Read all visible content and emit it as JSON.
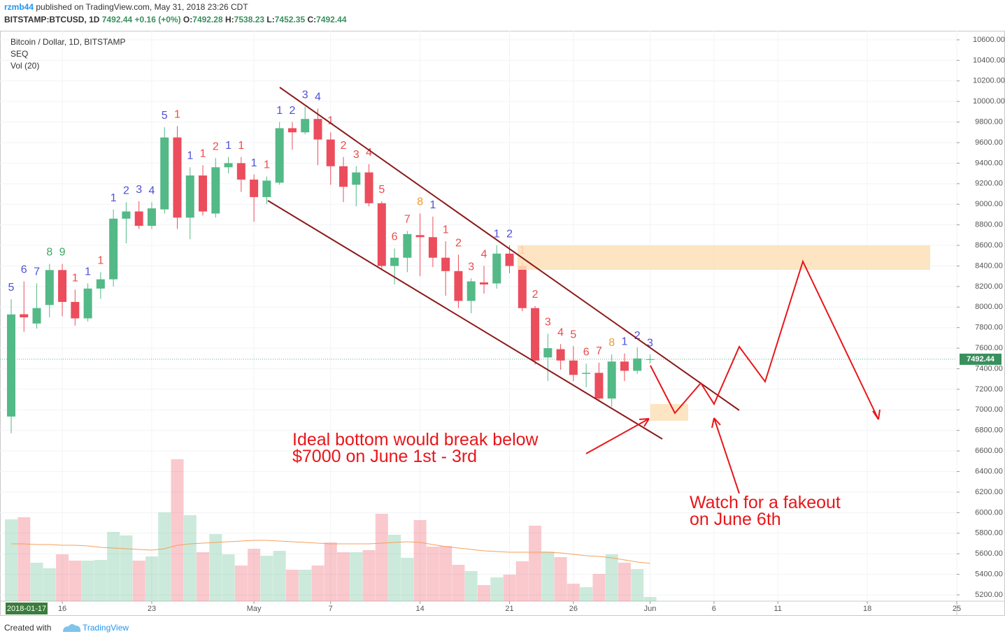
{
  "header": {
    "author": "rzmb44",
    "published": "published on TradingView.com, May 31, 2018 23:26 CDT",
    "symbol": "BITSTAMP:BTCUSD, 1D",
    "last": "7492.44",
    "change": "+0.16 (+0%)",
    "o_label": "O:",
    "o": "7492.28",
    "h_label": "H:",
    "h": "7538.23",
    "l_label": "L:",
    "l": "7452.35",
    "c_label": "C:",
    "c": "7492.44"
  },
  "footer": {
    "created": "Created with",
    "brand": "TradingView"
  },
  "chart_data": {
    "type": "candlestick",
    "title": "Bitcoin / Dollar, 1D, BITSTAMP",
    "indicators": [
      "SEQ",
      "Vol (20)"
    ],
    "cursor_date": "2018-01-17",
    "up_color": "#53b987",
    "down_color": "#eb4d5c",
    "open": [
      6935,
      7930,
      7840,
      8020,
      8360,
      8050,
      7890,
      8180,
      8270,
      8860,
      8930,
      8790,
      8950,
      9650,
      8870,
      9280,
      8910,
      9360,
      9400,
      9240,
      9070,
      9210,
      9740,
      9700,
      9830,
      9630,
      9370,
      9190,
      9310,
      9010,
      8400,
      8480,
      8700,
      8680,
      8480,
      8350,
      8060,
      8240,
      8230,
      8520,
      8400,
      7990,
      7510,
      7590,
      7480,
      7350,
      7360,
      7110,
      7470,
      7380,
      7492.28
    ],
    "high": [
      8077,
      8250,
      8230,
      8420,
      8420,
      8170,
      8230,
      8340,
      8950,
      9020,
      9030,
      9020,
      9750,
      9760,
      9360,
      9380,
      9450,
      9460,
      9460,
      9290,
      9270,
      9800,
      9800,
      9950,
      9930,
      9700,
      9460,
      9370,
      9390,
      9030,
      8570,
      8740,
      8910,
      8880,
      8640,
      8510,
      8280,
      8400,
      8600,
      8600,
      8440,
      8010,
      7740,
      7640,
      7620,
      7450,
      7460,
      7540,
      7550,
      7610,
      7538.23
    ],
    "low": [
      6772,
      7760,
      7790,
      7900,
      7910,
      7820,
      7860,
      8080,
      8200,
      8620,
      8760,
      8760,
      8910,
      8760,
      8660,
      8890,
      8870,
      9300,
      9120,
      8830,
      9000,
      9190,
      9530,
      9680,
      9380,
      9190,
      9020,
      8980,
      8980,
      8360,
      8220,
      8340,
      8300,
      8390,
      8110,
      7990,
      7940,
      8130,
      8180,
      8330,
      7960,
      7440,
      7280,
      7390,
      7280,
      7220,
      7080,
      7030,
      7280,
      7350,
      7452.35
    ],
    "close": [
      7928,
      7900,
      7990,
      8360,
      8050,
      7890,
      8180,
      8270,
      8860,
      8930,
      8790,
      8960,
      9650,
      8870,
      9280,
      8930,
      9360,
      9400,
      9240,
      9070,
      9230,
      9740,
      9700,
      9830,
      9630,
      9370,
      9170,
      9310,
      9010,
      8400,
      8480,
      8710,
      8680,
      8480,
      8350,
      8060,
      8250,
      8220,
      8520,
      8400,
      7990,
      7480,
      7600,
      7480,
      7340,
      7360,
      7110,
      7470,
      7380,
      7500,
      7492.44
    ],
    "seq": {
      "values": [
        5,
        6,
        7,
        8,
        9,
        1,
        1,
        1,
        1,
        2,
        3,
        4,
        5,
        1,
        1,
        1,
        2,
        1,
        1,
        1,
        1,
        1,
        2,
        3,
        4,
        1,
        2,
        3,
        4,
        5,
        6,
        7,
        8,
        1,
        1,
        2,
        3,
        4,
        1,
        2,
        1,
        2,
        3,
        4,
        5,
        6,
        7,
        8,
        1,
        2,
        3
      ],
      "palette": [
        "#5050d8",
        "#ee4b4b",
        "#3ea664",
        "#f09a2a"
      ],
      "color_index": [
        0,
        0,
        0,
        2,
        2,
        1,
        0,
        1,
        0,
        0,
        0,
        0,
        0,
        1,
        0,
        1,
        1,
        0,
        1,
        0,
        1,
        0,
        0,
        0,
        0,
        1,
        1,
        1,
        1,
        1,
        1,
        1,
        3,
        0,
        1,
        1,
        1,
        1,
        0,
        0,
        1,
        1,
        1,
        1,
        1,
        1,
        1,
        3,
        0,
        0,
        0
      ]
    },
    "volume": [
      117,
      120,
      55,
      47,
      67,
      58,
      58,
      59,
      99,
      94,
      58,
      64,
      127,
      203,
      123,
      70,
      96,
      67,
      51,
      75,
      65,
      72,
      45,
      45,
      51,
      84,
      70,
      70,
      73,
      125,
      95,
      62,
      116,
      78,
      79,
      52,
      43,
      23,
      34,
      38,
      57,
      108,
      71,
      63,
      25,
      20,
      39,
      67,
      55,
      46,
      6
    ],
    "volume_ma": [
      82,
      82,
      81,
      81,
      80,
      80,
      79,
      77,
      76,
      75,
      74,
      73,
      75,
      80,
      82,
      83,
      84,
      85,
      86,
      87,
      87,
      86,
      85,
      84,
      83,
      82,
      82,
      82,
      82,
      83,
      84,
      85,
      84,
      81,
      78,
      76,
      74,
      72,
      71,
      70,
      70,
      70,
      70,
      69,
      67,
      65,
      64,
      62,
      59,
      56,
      54
    ],
    "volume_ma_color": "#f5a05a",
    "volume_ylim": [
      0,
      816
    ],
    "last_price": {
      "value": 7492.44,
      "label": "7492.44"
    },
    "ylim": [
      5139,
      10688
    ],
    "yticks": [
      {
        "value": 5200,
        "label": "5200.00"
      },
      {
        "value": 5400,
        "label": "5400.00"
      },
      {
        "value": 5600,
        "label": "5600.00"
      },
      {
        "value": 5800,
        "label": "5800.00"
      },
      {
        "value": 6000,
        "label": "6000.00"
      },
      {
        "value": 6200,
        "label": "6200.00"
      },
      {
        "value": 6400,
        "label": "6400.00"
      },
      {
        "value": 6600,
        "label": "6600.00"
      },
      {
        "value": 6800,
        "label": "6800.00"
      },
      {
        "value": 7000,
        "label": "7000.00"
      },
      {
        "value": 7200,
        "label": "7200.00"
      },
      {
        "value": 7400,
        "label": "7400.00"
      },
      {
        "value": 7600,
        "label": "7600.00"
      },
      {
        "value": 7800,
        "label": "7800.00"
      },
      {
        "value": 8000,
        "label": "8000.00"
      },
      {
        "value": 8200,
        "label": "8200.00"
      },
      {
        "value": 8400,
        "label": "8400.00"
      },
      {
        "value": 8600,
        "label": "8600.00"
      },
      {
        "value": 8800,
        "label": "8800.00"
      },
      {
        "value": 9000,
        "label": "9000.00"
      },
      {
        "value": 9200,
        "label": "9200.00"
      },
      {
        "value": 9400,
        "label": "9400.00"
      },
      {
        "value": 9600,
        "label": "9600.00"
      },
      {
        "value": 9800,
        "label": "9800.00"
      },
      {
        "value": 10000,
        "label": "10000.00"
      },
      {
        "value": 10200,
        "label": "10200.00"
      },
      {
        "value": 10400,
        "label": "10400.00"
      },
      {
        "value": 10600,
        "label": "10600.00"
      }
    ],
    "xlim": [
      -0.875,
      74
    ],
    "xticks": [
      {
        "value": 4,
        "label": "16"
      },
      {
        "value": 11,
        "label": "23"
      },
      {
        "value": 19,
        "label": "May"
      },
      {
        "value": 25,
        "label": "7"
      },
      {
        "value": 32,
        "label": "14"
      },
      {
        "value": 39,
        "label": "21"
      },
      {
        "value": 44,
        "label": "26"
      },
      {
        "value": 50,
        "label": "Jun"
      },
      {
        "value": 55,
        "label": "6"
      },
      {
        "value": 60,
        "label": "11"
      },
      {
        "value": 67,
        "label": "18"
      },
      {
        "value": 74,
        "label": "25"
      }
    ],
    "grid": true,
    "annotations": [
      "Ideal bottom would break below",
      "$7000 on June 1st - 3rd",
      "Watch for a fakeout",
      "on June 6th"
    ]
  }
}
